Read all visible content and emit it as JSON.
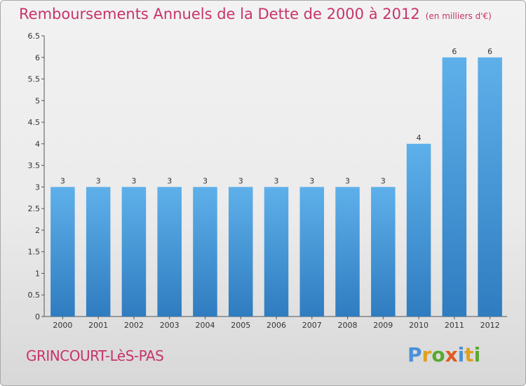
{
  "header": {
    "title": "Remboursements Annuels de la Dette de 2000 à 2012",
    "subtitle": "(en milliers d'€)"
  },
  "footer": {
    "location": "GRINCOURT-LèS-PAS",
    "logo_text": "Proxiti"
  },
  "colors": {
    "title": "#c8336b",
    "bar_top": "#5eb0ea",
    "bar_bottom": "#2f7cc0"
  },
  "chart_data": {
    "type": "bar",
    "title": "Remboursements Annuels de la Dette de 2000 à 2012",
    "subtitle": "(en milliers d'€)",
    "xlabel": "",
    "ylabel": "",
    "categories": [
      "2000",
      "2001",
      "2002",
      "2003",
      "2004",
      "2005",
      "2006",
      "2007",
      "2008",
      "2009",
      "2010",
      "2011",
      "2012"
    ],
    "values": [
      3,
      3,
      3,
      3,
      3,
      3,
      3,
      3,
      3,
      3,
      4,
      6,
      6
    ],
    "data_labels": [
      "3",
      "3",
      "3",
      "3",
      "3",
      "3",
      "3",
      "3",
      "3",
      "3",
      "4",
      "6",
      "6"
    ],
    "yticks": [
      "0",
      "0.5",
      "1",
      "1.5",
      "2",
      "2.5",
      "3",
      "3.5",
      "4",
      "4.5",
      "5",
      "5.5",
      "6",
      "6.5"
    ],
    "ylim": [
      0,
      6.5
    ],
    "grid": false,
    "legend": "none"
  }
}
